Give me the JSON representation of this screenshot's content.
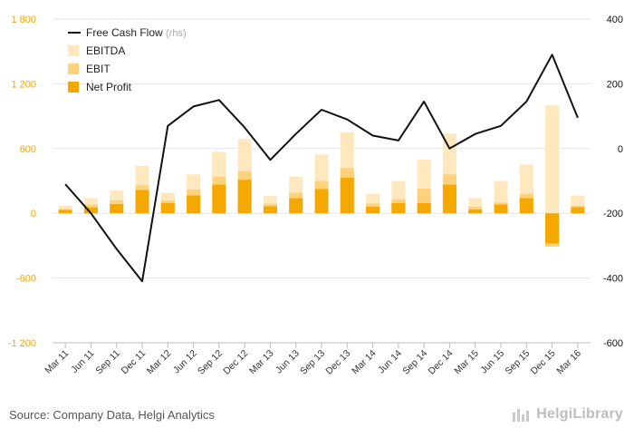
{
  "footer": {
    "source": "Source: Company Data, Helgi Analytics",
    "brand": "HelgiLibrary"
  },
  "colors": {
    "ebitda": "#ffe8be",
    "ebit": "#fdd27a",
    "net_profit": "#f5a800",
    "fcf": "#111111",
    "grid": "#e6e6e6",
    "left_axis_text": "#f5a800",
    "right_axis_text": "#111111"
  },
  "chart_data": {
    "type": "bar",
    "categories": [
      "Mar 11",
      "Jun 11",
      "Sep 11",
      "Dec 11",
      "Mar 12",
      "Jun 12",
      "Sep 12",
      "Dec 12",
      "Mar 13",
      "Jun 13",
      "Sep 13",
      "Dec 13",
      "Mar 14",
      "Jun 14",
      "Sep 14",
      "Dec 14",
      "Mar 15",
      "Jun 15",
      "Sep 15",
      "Dec 15",
      "Mar 16"
    ],
    "series": [
      {
        "name": "EBITDA",
        "kind": "bar",
        "axis": "left",
        "values": [
          70,
          140,
          210,
          440,
          190,
          360,
          570,
          690,
          160,
          340,
          545,
          750,
          180,
          300,
          500,
          740,
          140,
          300,
          450,
          1000,
          165
        ]
      },
      {
        "name": "EBIT",
        "kind": "bar",
        "axis": "left",
        "values": [
          40,
          80,
          120,
          260,
          120,
          220,
          340,
          390,
          90,
          190,
          300,
          420,
          90,
          130,
          230,
          360,
          60,
          100,
          180,
          -310,
          70
        ]
      },
      {
        "name": "Net Profit",
        "kind": "bar",
        "axis": "left",
        "values": [
          30,
          55,
          85,
          215,
          95,
          165,
          265,
          310,
          65,
          140,
          225,
          330,
          60,
          95,
          95,
          265,
          35,
          80,
          140,
          -280,
          55
        ]
      },
      {
        "name": "Free Cash Flow",
        "kind": "line",
        "axis": "right",
        "suffix": "(rhs)",
        "values": [
          -110,
          -200,
          -310,
          -410,
          70,
          130,
          150,
          65,
          -35,
          45,
          120,
          90,
          40,
          25,
          145,
          0,
          45,
          70,
          145,
          290,
          95
        ]
      }
    ],
    "left_axis": {
      "ticks": [
        "1 800",
        "1 200",
        "600",
        "0",
        "-600",
        "-1 200"
      ],
      "ylim": [
        -1200,
        1800
      ]
    },
    "right_axis": {
      "ticks": [
        "400",
        "200",
        "0",
        "-200",
        "-400",
        "-600"
      ],
      "ylim": [
        -600,
        400
      ]
    },
    "grid": true,
    "legend": "top-left"
  }
}
